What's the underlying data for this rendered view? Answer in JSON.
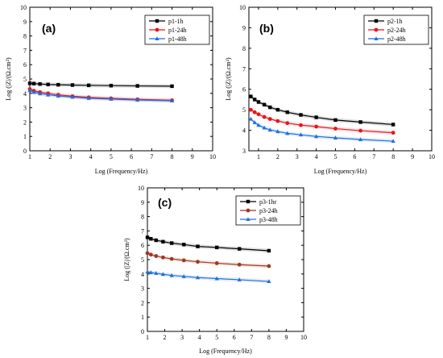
{
  "colors": {
    "series1": "#000000",
    "series2": "#e8151b",
    "series3": "#1f6fe0",
    "series2_panel_c": "#a0381e"
  },
  "chart_data": [
    {
      "type": "line",
      "panel_label": "(a)",
      "xlabel": "Log (Frequency/Hz)",
      "ylabel": "Log (|Z|/(Ω.cm²)",
      "xlim": [
        1,
        10
      ],
      "ylim": [
        0,
        10
      ],
      "xticks": [
        1,
        2,
        3,
        4,
        5,
        6,
        7,
        8,
        9,
        10
      ],
      "yticks": [
        0,
        1,
        2,
        3,
        4,
        5,
        6,
        7,
        8,
        9,
        10
      ],
      "legend_position": "top-right",
      "grid": false,
      "series": [
        {
          "name": "p1-1h",
          "marker": "square",
          "color": "#000000",
          "x": [
            1.0,
            1.2,
            1.5,
            1.9,
            2.4,
            3.1,
            3.9,
            5.0,
            6.3,
            8.0
          ],
          "y": [
            4.7,
            4.68,
            4.65,
            4.62,
            4.6,
            4.58,
            4.56,
            4.54,
            4.52,
            4.5
          ]
        },
        {
          "name": "p1-24h",
          "marker": "circle",
          "color": "#e8151b",
          "x": [
            1.0,
            1.2,
            1.5,
            1.9,
            2.4,
            3.1,
            3.9,
            5.0,
            6.3,
            8.0
          ],
          "y": [
            4.3,
            4.18,
            4.08,
            4.0,
            3.9,
            3.8,
            3.72,
            3.65,
            3.58,
            3.52
          ]
        },
        {
          "name": "p1-48h",
          "marker": "triangle",
          "color": "#1f6fe0",
          "x": [
            1.0,
            1.2,
            1.5,
            1.9,
            2.4,
            3.1,
            3.9,
            5.0,
            6.3,
            8.0
          ],
          "y": [
            4.2,
            4.08,
            3.98,
            3.9,
            3.82,
            3.74,
            3.66,
            3.6,
            3.54,
            3.48
          ]
        }
      ]
    },
    {
      "type": "line",
      "panel_label": "(b)",
      "xlabel": "Log (Frequency/Hz)",
      "ylabel": "Log (|Z|/(Ω.cm²)",
      "xlim": [
        0.5,
        10
      ],
      "ylim": [
        3,
        10
      ],
      "xticks": [
        1,
        2,
        3,
        4,
        5,
        6,
        7,
        8,
        9,
        10
      ],
      "yticks": [
        3,
        4,
        5,
        6,
        7,
        8,
        9,
        10
      ],
      "legend_position": "top-right",
      "grid": false,
      "series": [
        {
          "name": "p2-1h",
          "marker": "square",
          "color": "#000000",
          "x": [
            0.6,
            0.8,
            1.0,
            1.3,
            1.6,
            2.0,
            2.5,
            3.2,
            4.0,
            5.0,
            6.3,
            8.0
          ],
          "y": [
            5.65,
            5.5,
            5.38,
            5.25,
            5.12,
            5.0,
            4.88,
            4.75,
            4.63,
            4.5,
            4.4,
            4.28
          ]
        },
        {
          "name": "p2-24h",
          "marker": "circle",
          "color": "#e8151b",
          "x": [
            0.6,
            0.8,
            1.0,
            1.3,
            1.6,
            2.0,
            2.5,
            3.2,
            4.0,
            5.0,
            6.3,
            8.0
          ],
          "y": [
            5.0,
            4.88,
            4.78,
            4.65,
            4.55,
            4.45,
            4.35,
            4.25,
            4.18,
            4.08,
            3.98,
            3.88
          ]
        },
        {
          "name": "p2-48h",
          "marker": "triangle",
          "color": "#1f6fe0",
          "x": [
            0.6,
            0.8,
            1.0,
            1.3,
            1.6,
            2.0,
            2.5,
            3.2,
            4.0,
            5.0,
            6.3,
            8.0
          ],
          "y": [
            4.55,
            4.38,
            4.25,
            4.12,
            4.02,
            3.94,
            3.85,
            3.78,
            3.7,
            3.63,
            3.55,
            3.47
          ]
        }
      ]
    },
    {
      "type": "line",
      "panel_label": "(c)",
      "xlabel": "Log (Frequency/Hz)",
      "ylabel": "Log (|Z|/(Ω.cm²)",
      "xlim": [
        1,
        10
      ],
      "ylim": [
        0,
        10
      ],
      "xticks": [
        1,
        2,
        3,
        4,
        5,
        6,
        7,
        8,
        9,
        10
      ],
      "yticks": [
        0,
        1,
        2,
        3,
        4,
        5,
        6,
        7,
        8,
        9,
        10
      ],
      "legend_position": "top-right",
      "grid": false,
      "series": [
        {
          "name": "p3-1hr",
          "marker": "square",
          "color": "#000000",
          "x": [
            1.0,
            1.2,
            1.5,
            1.9,
            2.4,
            3.1,
            3.9,
            5.0,
            6.3,
            8.0
          ],
          "y": [
            6.55,
            6.45,
            6.35,
            6.25,
            6.15,
            6.05,
            5.92,
            5.85,
            5.75,
            5.62
          ]
        },
        {
          "name": "p3-24h",
          "marker": "circle",
          "color": "#a0381e",
          "x": [
            1.0,
            1.2,
            1.5,
            1.9,
            2.4,
            3.1,
            3.9,
            5.0,
            6.3,
            8.0
          ],
          "y": [
            5.45,
            5.35,
            5.25,
            5.15,
            5.05,
            4.95,
            4.85,
            4.75,
            4.65,
            4.55
          ]
        },
        {
          "name": "p3-48h",
          "marker": "triangle",
          "color": "#1f6fe0",
          "x": [
            1.0,
            1.2,
            1.5,
            1.9,
            2.4,
            3.1,
            3.9,
            5.0,
            6.3,
            8.0
          ],
          "y": [
            4.15,
            4.1,
            4.05,
            3.98,
            3.9,
            3.83,
            3.75,
            3.68,
            3.6,
            3.48
          ]
        }
      ]
    }
  ]
}
